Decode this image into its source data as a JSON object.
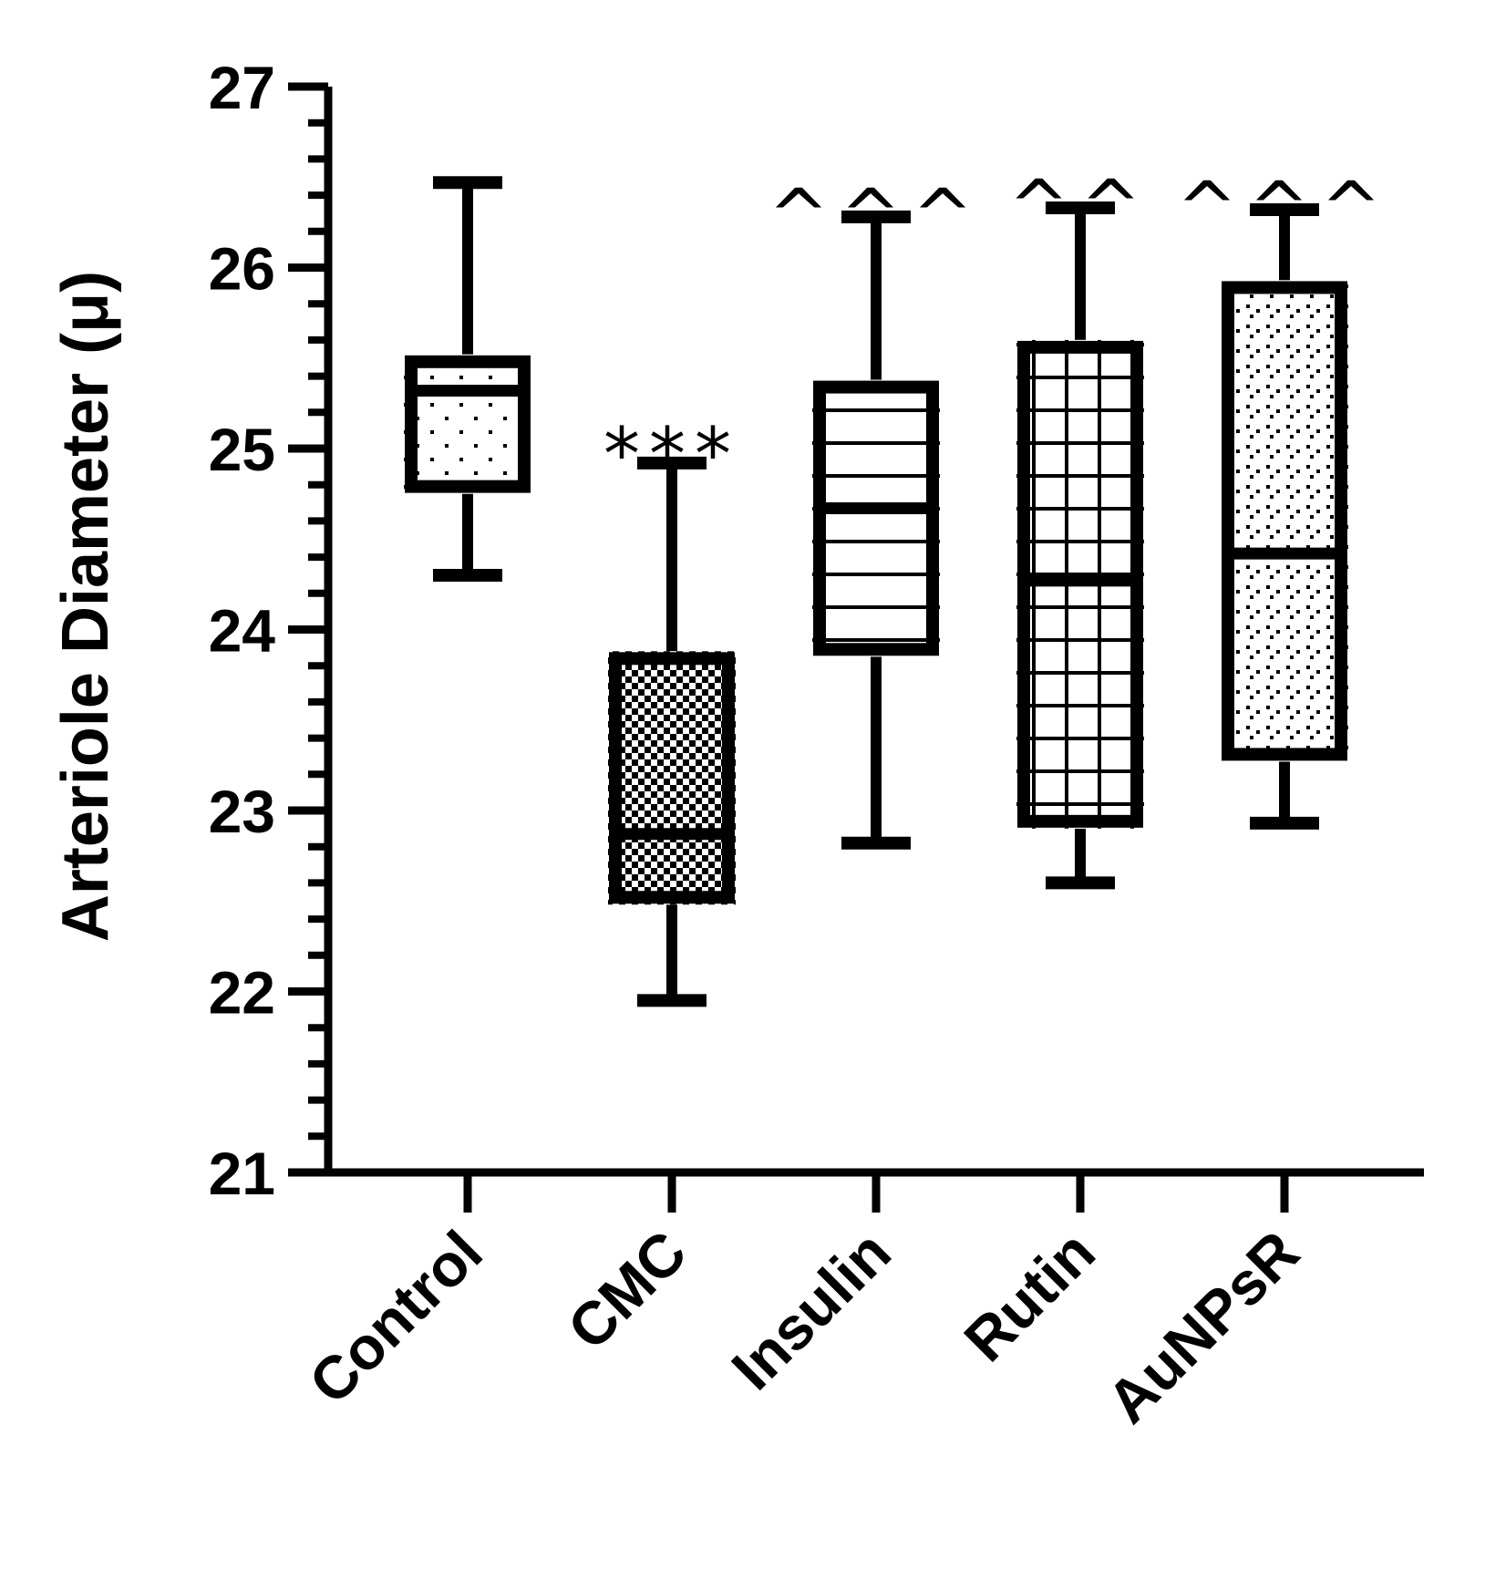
{
  "chart_data": {
    "type": "boxplot",
    "title": "",
    "ylabel": "Arteriole Diameter (μ)",
    "xlabel": "",
    "ylim": [
      21,
      27
    ],
    "yticks": [
      "21",
      "22",
      "23",
      "24",
      "25",
      "26",
      "27"
    ],
    "minor_ticks_per_major": 5,
    "grid": false,
    "categories": [
      "Control",
      "CMC",
      "Insulin",
      "Rutin",
      "AuNPsR"
    ],
    "boxes": [
      {
        "name": "Control",
        "min": 24.3,
        "q1": 24.75,
        "median": 25.32,
        "q3": 25.52,
        "max": 26.47,
        "pattern": "dots",
        "annotation": ""
      },
      {
        "name": "CMC",
        "min": 21.95,
        "q1": 22.48,
        "median": 22.87,
        "q3": 23.88,
        "max": 24.92,
        "pattern": "checker",
        "annotation": "***"
      },
      {
        "name": "Insulin",
        "min": 22.82,
        "q1": 23.85,
        "median": 24.67,
        "q3": 25.38,
        "max": 26.28,
        "pattern": "hlines",
        "annotation": "^^^"
      },
      {
        "name": "Rutin",
        "min": 22.6,
        "q1": 22.9,
        "median": 24.27,
        "q3": 25.6,
        "max": 26.33,
        "pattern": "grid",
        "annotation": "^^"
      },
      {
        "name": "AuNPsR",
        "min": 22.93,
        "q1": 23.27,
        "median": 24.42,
        "q3": 25.93,
        "max": 26.32,
        "pattern": "confetti",
        "annotation": "^^^"
      }
    ]
  }
}
